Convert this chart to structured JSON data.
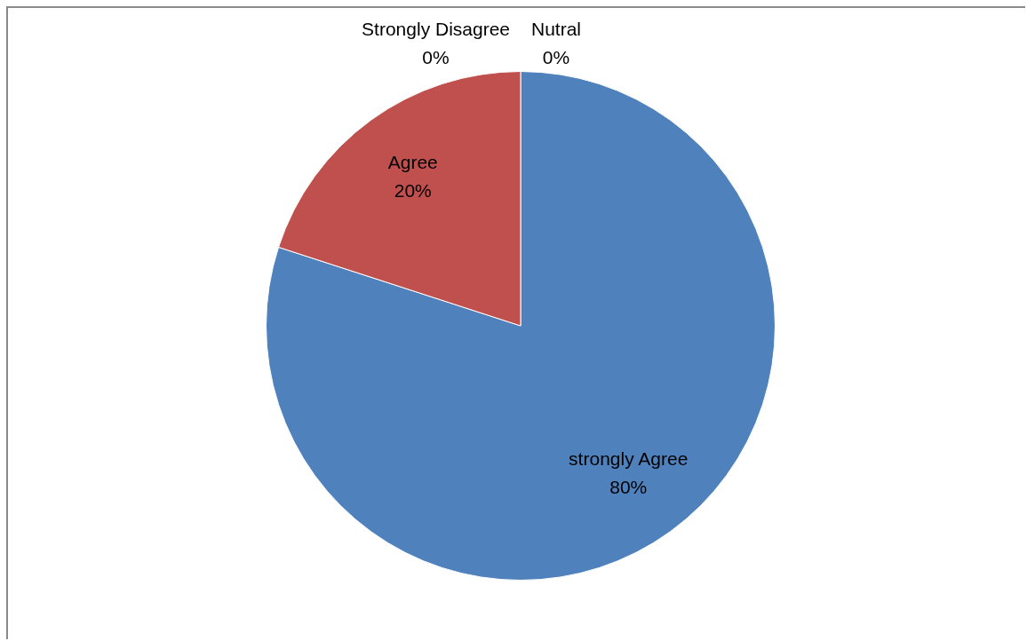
{
  "chart_data": {
    "type": "pie",
    "categories": [
      "strongly Agree",
      "Agree",
      "Strongly Disagree",
      "Nutral"
    ],
    "values": [
      80,
      20,
      0,
      0
    ],
    "colors": [
      "#4f81bd",
      "#c0504d",
      "#9bbb59",
      "#8064a2"
    ],
    "value_labels": [
      "80%",
      "20%",
      "0%",
      "0%"
    ]
  }
}
